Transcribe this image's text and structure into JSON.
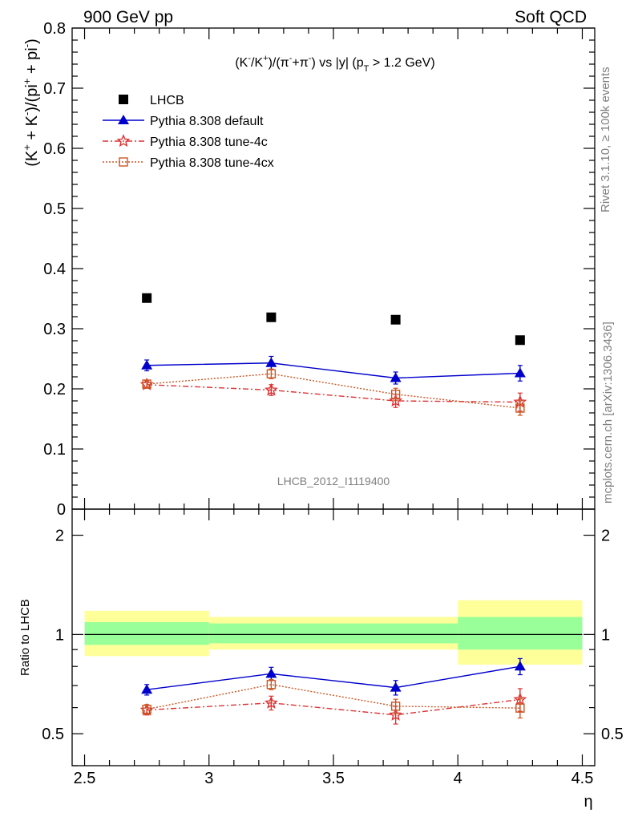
{
  "header": {
    "left": "900 GeV pp",
    "right": "Soft QCD"
  },
  "plot_title": "(K-/K+)/(π-+π-) vs |y| (pT > 1.2 GeV)",
  "analysis_label": "LHCB_2012_I1119400",
  "side_labels": {
    "rivet": "Rivet 3.1.10, ≥ 100k events",
    "mcplots": "mcplots.cern.ch [arXiv:1306.3436]"
  },
  "ylabel_main": "(K+ + K-)/(pi+ + pi-)",
  "ylabel_ratio": "Ratio to LHCB",
  "xlabel": "η",
  "legend_labels": {
    "data": "LHCB",
    "default": "Pythia 8.308 default",
    "tune4c": "Pythia 8.308 tune-4c",
    "tune4cx": "Pythia 8.308 tune-4cx"
  },
  "colors": {
    "data": "#000000",
    "default": "#0000cc",
    "tune4c": "#dd3333",
    "tune4cx": "#cc5522",
    "band_inner": "#99ff99",
    "band_outer": "#ffff99"
  },
  "chart_data": [
    {
      "type": "scatter",
      "panel": "main",
      "x": [
        2.75,
        3.25,
        3.75,
        4.25
      ],
      "xlim": [
        2.45,
        4.55
      ],
      "ylim": [
        0.0,
        0.8
      ],
      "xticks": [
        "2.5",
        "3",
        "3.5",
        "4",
        "4.5"
      ],
      "yticks": [
        "0",
        "0.1",
        "0.2",
        "0.3",
        "0.4",
        "0.5",
        "0.6",
        "0.7",
        "0.8"
      ],
      "legend_position": "top-left",
      "series": [
        {
          "key": "data",
          "name": "LHCB",
          "marker": "square",
          "values": [
            0.351,
            0.319,
            0.315,
            0.281
          ],
          "errors": [
            0.0,
            0.0,
            0.0,
            0.0
          ]
        },
        {
          "key": "default",
          "name": "Pythia 8.308 default",
          "marker": "triangle",
          "values": [
            0.239,
            0.243,
            0.218,
            0.226
          ],
          "errors": [
            0.009,
            0.011,
            0.01,
            0.013
          ]
        },
        {
          "key": "tune4c",
          "name": "Pythia 8.308 tune-4c",
          "marker": "star",
          "values": [
            0.207,
            0.198,
            0.18,
            0.178
          ],
          "errors": [
            0.006,
            0.009,
            0.011,
            0.015
          ]
        },
        {
          "key": "tune4cx",
          "name": "Pythia 8.308 tune-4cx",
          "marker": "open-square",
          "values": [
            0.208,
            0.225,
            0.191,
            0.168
          ],
          "errors": [
            0.005,
            0.008,
            0.01,
            0.012
          ]
        }
      ]
    },
    {
      "type": "scatter",
      "panel": "ratio",
      "ylabel": "Ratio to LHCB",
      "xlabel": "η",
      "x": [
        2.75,
        3.25,
        3.75,
        4.25
      ],
      "xlim": [
        2.45,
        4.55
      ],
      "ylim": [
        0.4,
        2.4
      ],
      "yscale": "log",
      "yticks": [
        "0.5",
        "1",
        "2"
      ],
      "xticks": [
        "2.5",
        "3",
        "3.5",
        "4",
        "4.5"
      ],
      "bands": [
        {
          "x": [
            2.5,
            3.0
          ],
          "inner": [
            0.93,
            1.09
          ],
          "outer": [
            0.86,
            1.18
          ]
        },
        {
          "x": [
            3.0,
            3.5
          ],
          "inner": [
            0.94,
            1.08
          ],
          "outer": [
            0.9,
            1.13
          ]
        },
        {
          "x": [
            3.5,
            4.0
          ],
          "inner": [
            0.94,
            1.08
          ],
          "outer": [
            0.9,
            1.13
          ]
        },
        {
          "x": [
            4.0,
            4.5
          ],
          "inner": [
            0.9,
            1.13
          ],
          "outer": [
            0.81,
            1.27
          ]
        }
      ],
      "series": [
        {
          "key": "default",
          "name": "Pythia 8.308 default",
          "marker": "triangle",
          "values": [
            0.68,
            0.76,
            0.69,
            0.8
          ],
          "errors": [
            0.025,
            0.035,
            0.035,
            0.045
          ]
        },
        {
          "key": "tune4c",
          "name": "Pythia 8.308 tune-4c",
          "marker": "star",
          "values": [
            0.59,
            0.62,
            0.57,
            0.635
          ],
          "errors": [
            0.02,
            0.03,
            0.035,
            0.05
          ]
        },
        {
          "key": "tune4cx",
          "name": "Pythia 8.308 tune-4cx",
          "marker": "open-square",
          "values": [
            0.593,
            0.705,
            0.606,
            0.598
          ],
          "errors": [
            0.02,
            0.025,
            0.03,
            0.04
          ]
        }
      ]
    }
  ]
}
